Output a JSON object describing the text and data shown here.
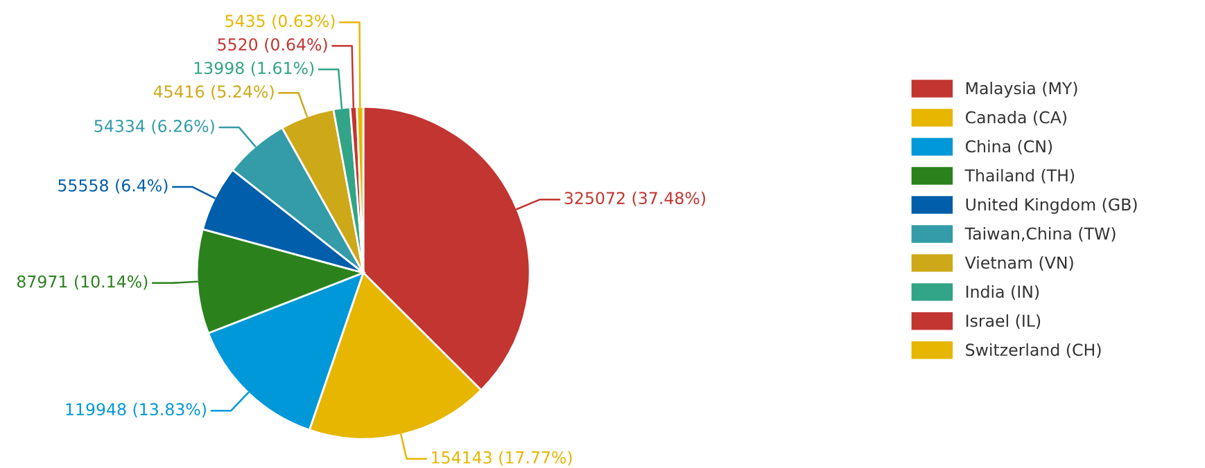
{
  "chart_data": {
    "type": "pie",
    "categories": [
      "Malaysia (MY)",
      "Canada (CA)",
      "China (CN)",
      "Thailand (TH)",
      "United Kingdom (GB)",
      "Taiwan,China (TW)",
      "Vietnam (VN)",
      "India (IN)",
      "Israel (IL)",
      "Switzerland (CH)"
    ],
    "values": [
      325072,
      154143,
      119948,
      87971,
      55558,
      54334,
      45416,
      13998,
      5520,
      5435
    ],
    "value_labels": [
      "325072 (37.48%)",
      "154143 (17.77%)",
      "119948 (13.83%)",
      "87971 (10.14%)",
      "55558 (6.4%)",
      "54334 (6.26%)",
      "45416 (5.24%)",
      "13998 (1.61%)",
      "5520 (0.64%)",
      "5435 (0.63%)"
    ],
    "colors": [
      "#c23531",
      "#e6b600",
      "#0098d9",
      "#2b821d",
      "#005eaa",
      "#339ca8",
      "#cda819",
      "#32a487",
      "#c23531",
      "#e6b600"
    ],
    "legend": "right"
  }
}
